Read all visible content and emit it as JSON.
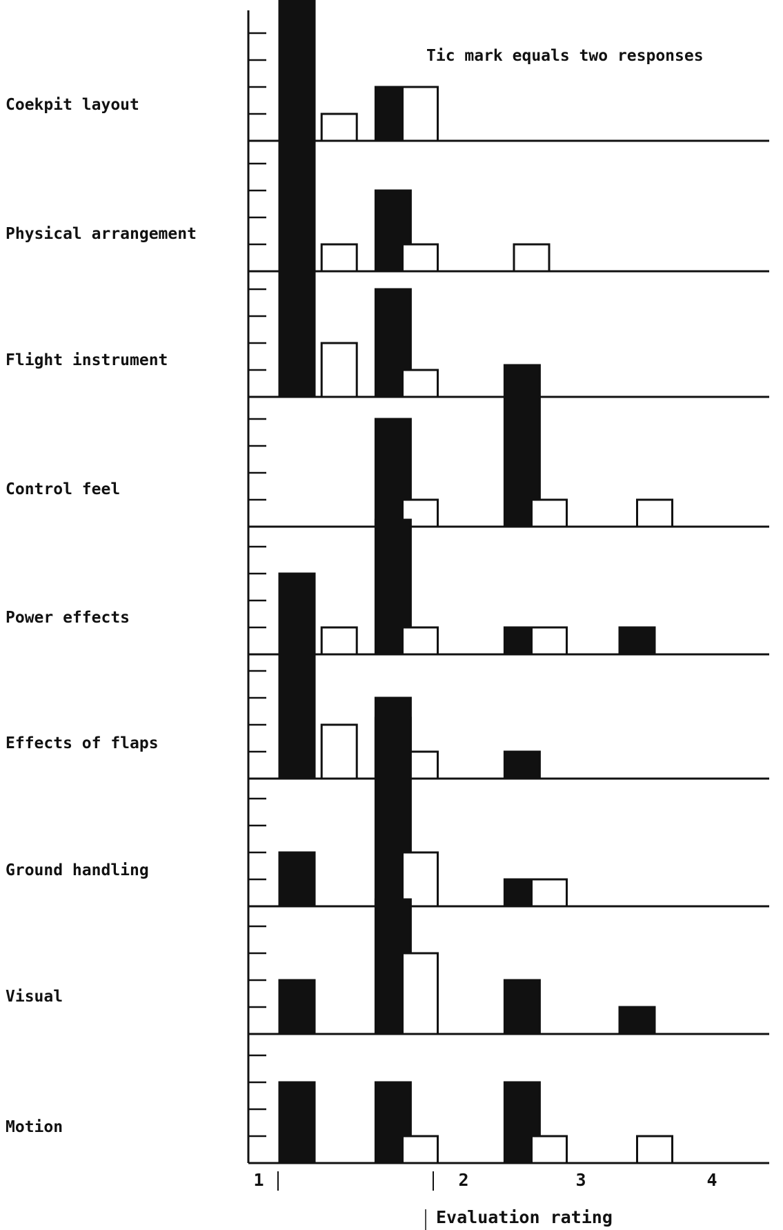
{
  "chart_data": {
    "type": "bar",
    "annotation": "Tic mark equals two responses",
    "xlabel": "Evaluation rating",
    "x_ticks": [
      "1",
      "2",
      "3",
      "4"
    ],
    "tic_unit_responses": 2,
    "colors": {
      "filled": "#111111",
      "open": "#ffffff",
      "axis": "#111111"
    },
    "panels": [
      {
        "label": "Coekpit layout",
        "bars": [
          {
            "x": 1.0,
            "fill": "filled",
            "value": 16
          },
          {
            "x": 1.36,
            "fill": "open",
            "value": 2
          },
          {
            "x": 1.82,
            "fill": "filled",
            "value": 4
          },
          {
            "x": 2.05,
            "fill": "open",
            "value": 4
          }
        ]
      },
      {
        "label": "Physical arrangement",
        "bars": [
          {
            "x": 1.0,
            "fill": "filled",
            "value": 12
          },
          {
            "x": 1.36,
            "fill": "open",
            "value": 2
          },
          {
            "x": 1.82,
            "fill": "filled",
            "value": 6
          },
          {
            "x": 2.05,
            "fill": "open",
            "value": 2
          },
          {
            "x": 3.0,
            "fill": "open",
            "value": 2
          }
        ]
      },
      {
        "label": "Flight instrument",
        "bars": [
          {
            "x": 1.0,
            "fill": "filled",
            "value": 10
          },
          {
            "x": 1.36,
            "fill": "open",
            "value": 4
          },
          {
            "x": 1.82,
            "fill": "filled",
            "value": 8
          },
          {
            "x": 2.05,
            "fill": "open",
            "value": 2
          }
        ]
      },
      {
        "label": "Control feel",
        "bars": [
          {
            "x": 1.82,
            "fill": "filled",
            "value": 8
          },
          {
            "x": 2.05,
            "fill": "open",
            "value": 2
          },
          {
            "x": 2.92,
            "fill": "filled",
            "value": 12
          },
          {
            "x": 3.15,
            "fill": "open",
            "value": 2
          },
          {
            "x": 4.05,
            "fill": "open",
            "value": 2
          }
        ]
      },
      {
        "label": "Power effects",
        "bars": [
          {
            "x": 1.0,
            "fill": "filled",
            "value": 6
          },
          {
            "x": 1.36,
            "fill": "open",
            "value": 2
          },
          {
            "x": 1.82,
            "fill": "filled",
            "value": 10
          },
          {
            "x": 2.05,
            "fill": "open",
            "value": 2
          },
          {
            "x": 2.92,
            "fill": "filled",
            "value": 2
          },
          {
            "x": 3.15,
            "fill": "open",
            "value": 2
          },
          {
            "x": 3.9,
            "fill": "filled",
            "value": 2
          }
        ]
      },
      {
        "label": "Effects of flaps",
        "bars": [
          {
            "x": 1.0,
            "fill": "filled",
            "value": 10
          },
          {
            "x": 1.36,
            "fill": "open",
            "value": 4
          },
          {
            "x": 1.82,
            "fill": "filled",
            "value": 6
          },
          {
            "x": 2.05,
            "fill": "open",
            "value": 2
          },
          {
            "x": 2.92,
            "fill": "filled",
            "value": 2
          }
        ]
      },
      {
        "label": "Ground handling",
        "bars": [
          {
            "x": 1.0,
            "fill": "filled",
            "value": 4
          },
          {
            "x": 1.82,
            "fill": "filled",
            "value": 14
          },
          {
            "x": 2.05,
            "fill": "open",
            "value": 4
          },
          {
            "x": 2.92,
            "fill": "filled",
            "value": 2
          },
          {
            "x": 3.15,
            "fill": "open",
            "value": 2
          }
        ]
      },
      {
        "label": "Visual",
        "bars": [
          {
            "x": 1.0,
            "fill": "filled",
            "value": 4
          },
          {
            "x": 1.82,
            "fill": "filled",
            "value": 10
          },
          {
            "x": 2.05,
            "fill": "open",
            "value": 6
          },
          {
            "x": 2.92,
            "fill": "filled",
            "value": 4
          },
          {
            "x": 3.9,
            "fill": "filled",
            "value": 2
          }
        ]
      },
      {
        "label": "Motion",
        "bars": [
          {
            "x": 1.0,
            "fill": "filled",
            "value": 6
          },
          {
            "x": 1.82,
            "fill": "filled",
            "value": 6
          },
          {
            "x": 2.05,
            "fill": "open",
            "value": 2
          },
          {
            "x": 2.92,
            "fill": "filled",
            "value": 6
          },
          {
            "x": 3.15,
            "fill": "open",
            "value": 2
          },
          {
            "x": 4.05,
            "fill": "open",
            "value": 2
          }
        ]
      }
    ]
  }
}
